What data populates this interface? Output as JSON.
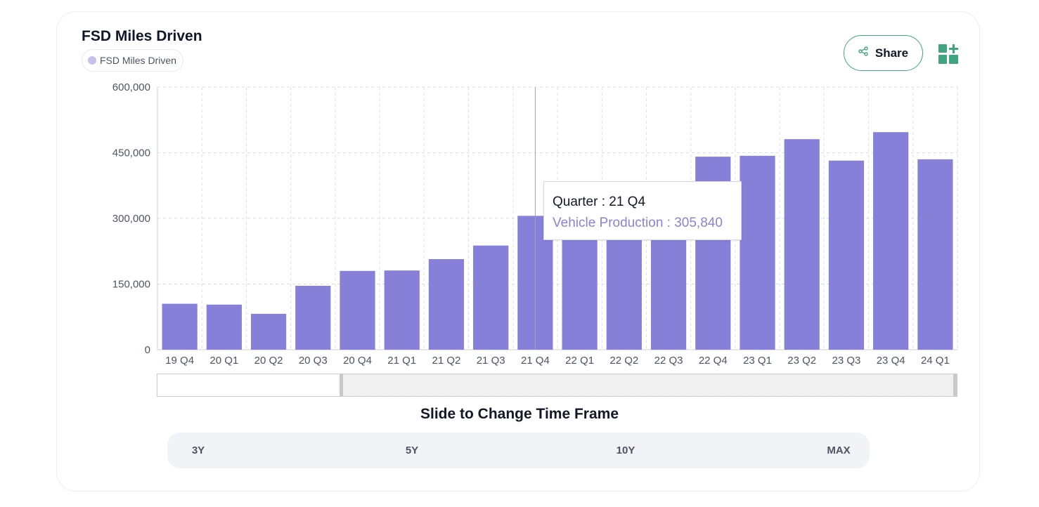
{
  "header": {
    "title": "FSD Miles Driven",
    "legend_label": "FSD Miles Driven",
    "share_label": "Share"
  },
  "colors": {
    "bar": "#8780d9",
    "legend_dot": "#c4c1ee",
    "accent_green": "#3fa57f"
  },
  "icons": [
    "share-icon",
    "add-widget-icon"
  ],
  "chart_data": {
    "type": "bar",
    "title": "FSD Miles Driven",
    "categories": [
      "19 Q4",
      "20 Q1",
      "20 Q2",
      "20 Q3",
      "20 Q4",
      "21 Q1",
      "21 Q2",
      "21 Q3",
      "21 Q4",
      "22 Q1",
      "22 Q2",
      "22 Q3",
      "22 Q4",
      "23 Q1",
      "23 Q2",
      "23 Q3",
      "23 Q4",
      "24 Q1"
    ],
    "series": [
      {
        "name": "FSD Miles Driven",
        "values": [
          105000,
          103000,
          82000,
          146000,
          180000,
          181000,
          207000,
          238000,
          305840,
          295000,
          296000,
          292000,
          441000,
          443000,
          481000,
          432000,
          497000,
          435000
        ]
      }
    ],
    "y_ticks": [
      "0",
      "150,000",
      "300,000",
      "450,000",
      "600,000"
    ],
    "ylim": [
      0,
      600000
    ],
    "grid": true,
    "legend_placement": "top-left"
  },
  "tooltip": {
    "quarter_text": "Quarter : 21 Q4",
    "value_text": "Vehicle Production : 305,840"
  },
  "slider": {
    "caption": "Slide to Change Time Frame"
  },
  "range_buttons": [
    "3Y",
    "5Y",
    "10Y",
    "MAX"
  ]
}
